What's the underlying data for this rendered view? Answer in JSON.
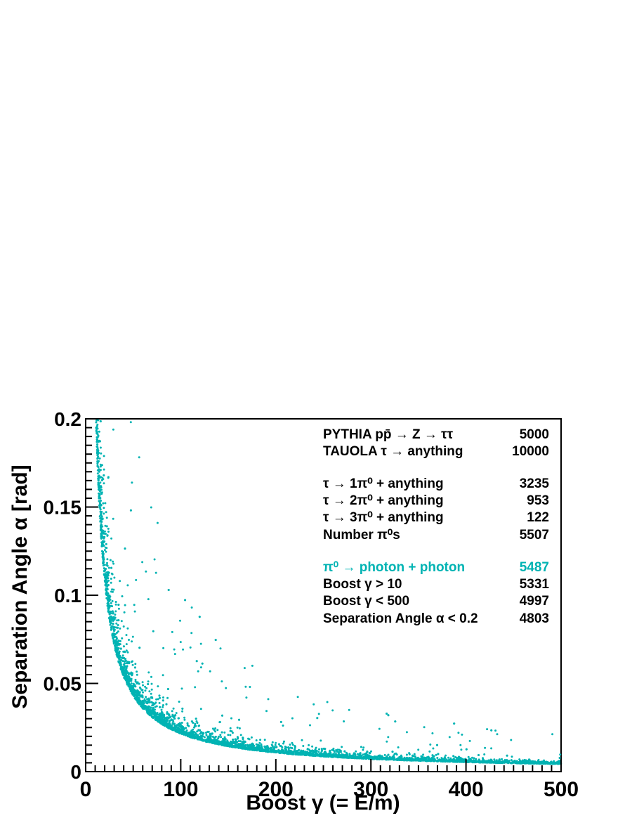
{
  "chart_data": {
    "type": "scatter",
    "xlabel": "Boost  γ  (= E/m)",
    "ylabel": "Separation Angle  α  [rad]",
    "xlim": [
      0,
      500
    ],
    "ylim": [
      0,
      0.2
    ],
    "x_ticks": [
      "0",
      "100",
      "200",
      "300",
      "400",
      "500"
    ],
    "y_ticks": [
      "0",
      "0.05",
      "0.1",
      "0.15",
      "0.2"
    ],
    "grid": false,
    "point_color": "#00b3b3",
    "legend_placement": "top-right",
    "legend": {
      "rows": [
        {
          "label": "PYTHIA    pp̄ → Z → ττ",
          "value": "5000",
          "highlight": false
        },
        {
          "label": "TAUOLA  τ → anything",
          "value": "10000",
          "highlight": false
        },
        {
          "label": "τ → 1π⁰ + anything",
          "value": "3235",
          "highlight": false
        },
        {
          "label": "τ → 2π⁰ + anything",
          "value": "953",
          "highlight": false
        },
        {
          "label": "τ → 3π⁰ + anything",
          "value": "122",
          "highlight": false
        },
        {
          "label": "Number π⁰s",
          "value": "5507",
          "highlight": false
        },
        {
          "label": "π⁰ → photon + photon",
          "value": "5487",
          "highlight": true
        },
        {
          "label": "Boost  γ > 10",
          "value": "5331",
          "highlight": false
        },
        {
          "label": "Boost  γ < 500",
          "value": "4997",
          "highlight": false
        },
        {
          "label": "Separation Angle α < 0.2",
          "value": "4803",
          "highlight": false
        }
      ]
    },
    "envelope": {
      "description_points": [
        [
          12,
          0.2
        ],
        [
          15,
          0.145
        ],
        [
          20,
          0.1
        ],
        [
          30,
          0.068
        ],
        [
          40,
          0.051
        ],
        [
          60,
          0.034
        ],
        [
          100,
          0.021
        ],
        [
          150,
          0.014
        ],
        [
          200,
          0.0105
        ],
        [
          300,
          0.0072
        ],
        [
          400,
          0.0055
        ],
        [
          500,
          0.0045
        ]
      ],
      "n_points": 4803
    }
  }
}
